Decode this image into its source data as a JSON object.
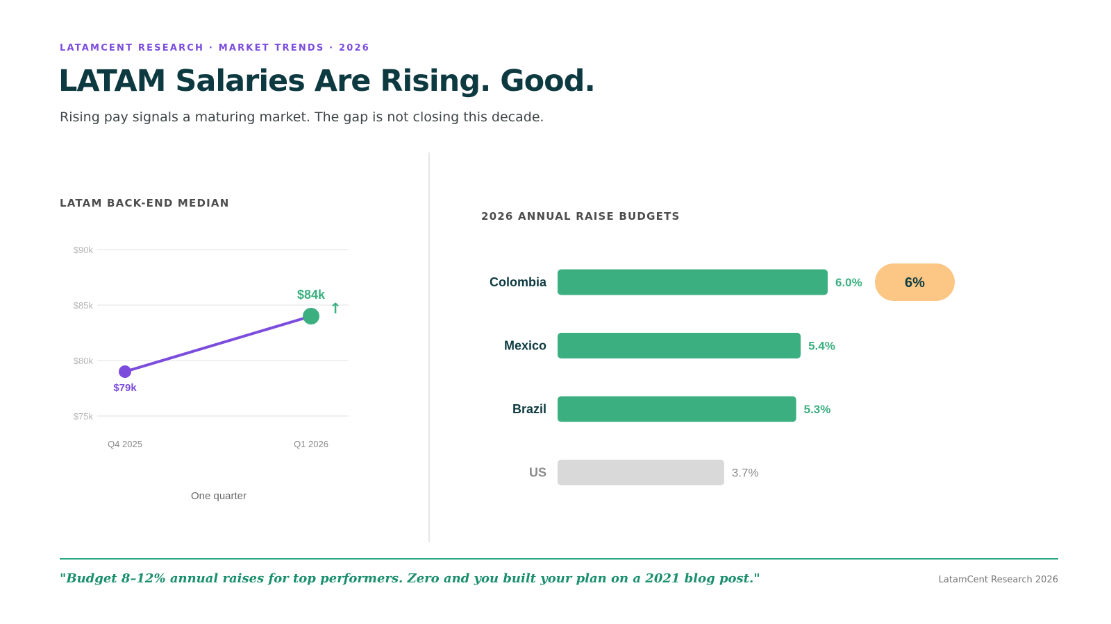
{
  "header": {
    "eyebrow": "LATAMCENT RESEARCH · MARKET TRENDS · 2026",
    "title": "LATAM Salaries Are Rising. Good.",
    "subtitle": "Rising pay signals a maturing market. The gap is not closing this decade."
  },
  "colors": {
    "accent_purple": "#7c4ddd",
    "accent_green": "#3caf80",
    "title_dark": "#0d3a40",
    "highlight_orange": "#fcc785",
    "muted_gray": "#d9d9d9"
  },
  "chart_data": [
    {
      "type": "line",
      "title": "LATAM BACK-END MEDIAN",
      "xlabel": "One quarter",
      "ylabel": "",
      "categories": [
        "Q4 2025",
        "Q1 2026"
      ],
      "values": [
        79,
        84
      ],
      "point_labels": [
        "$79k",
        "$84k"
      ],
      "trend_icon": "↑",
      "ylim": [
        75,
        90
      ],
      "yticks": [
        {
          "value": 90,
          "label": "$90k"
        },
        {
          "value": 85,
          "label": "$85k"
        },
        {
          "value": 80,
          "label": "$80k"
        },
        {
          "value": 75,
          "label": "$75k"
        }
      ],
      "grid": true
    },
    {
      "type": "bar",
      "orientation": "horizontal",
      "title": "2026 ANNUAL RAISE BUDGETS",
      "categories": [
        "Colombia",
        "Mexico",
        "Brazil",
        "US"
      ],
      "values": [
        6.0,
        5.4,
        5.3,
        3.7
      ],
      "value_labels": [
        "6.0%",
        "5.4%",
        "5.3%",
        "3.7%"
      ],
      "highlight": {
        "category": "Colombia",
        "label": "6%"
      }
    }
  ],
  "footer": {
    "quote": "\"Budget 8–12% annual raises for top performers. Zero and you built your plan on a 2021 blog post.\"",
    "credit": "LatamCent Research 2026"
  }
}
